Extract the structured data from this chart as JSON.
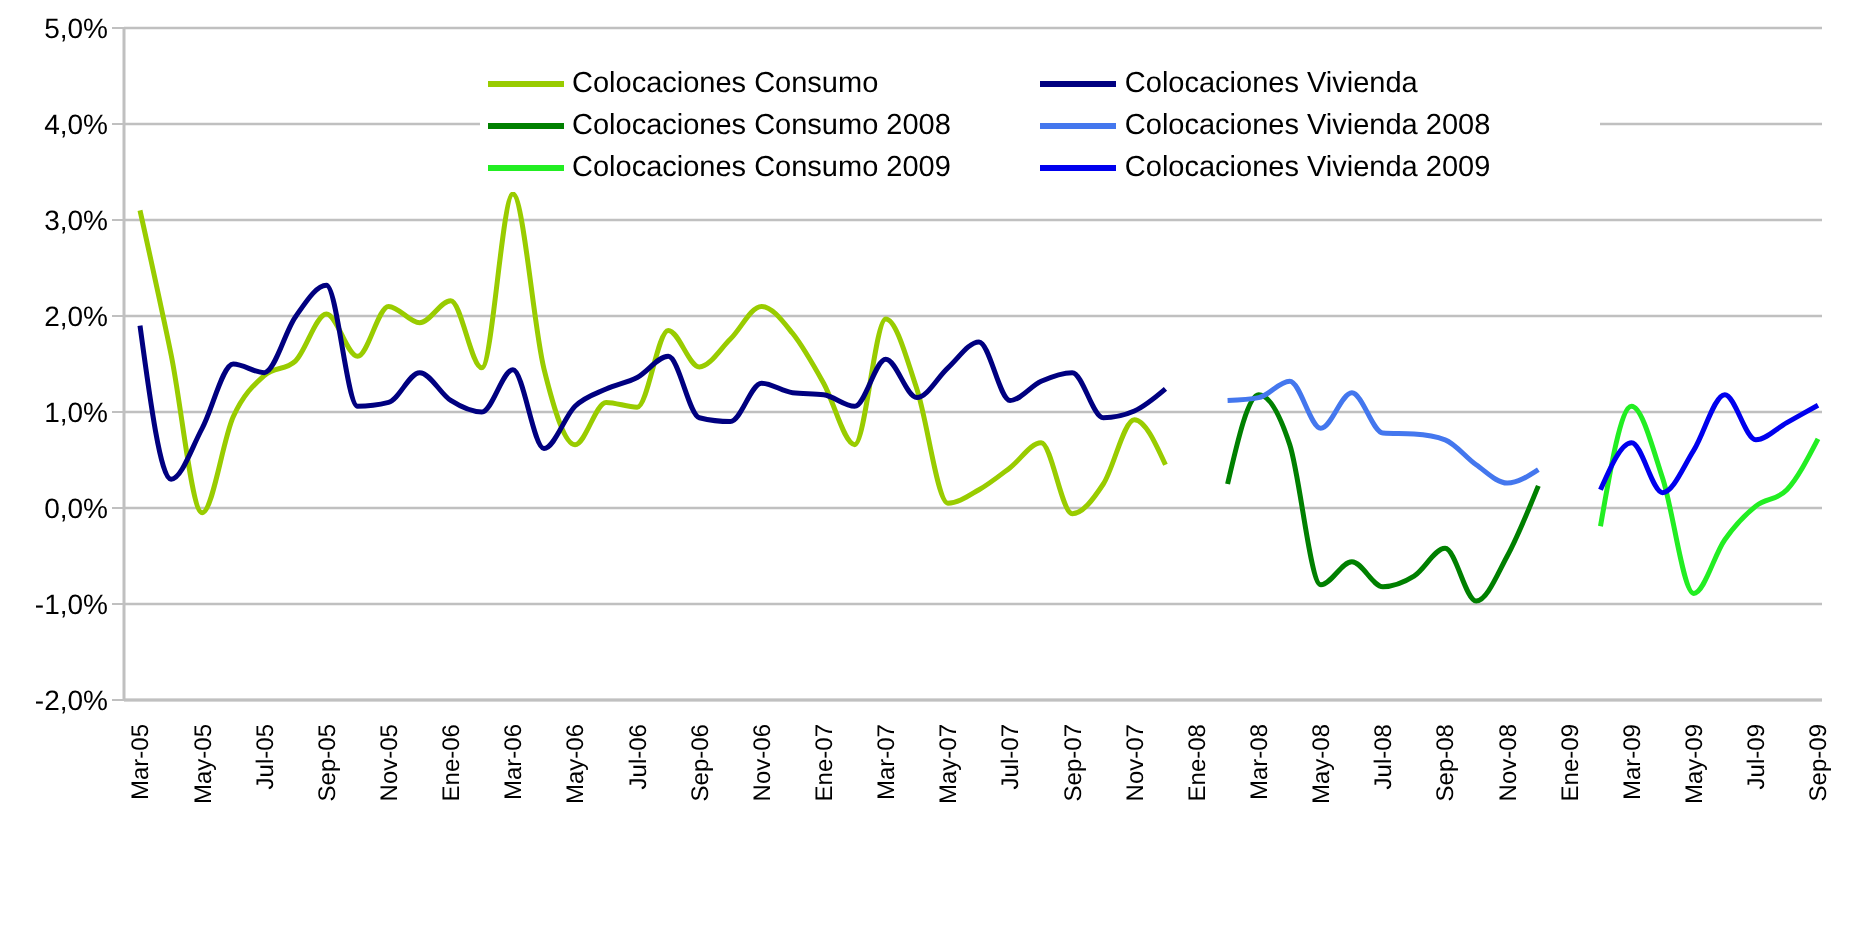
{
  "chart_data": {
    "type": "line",
    "categories": [
      "Mar-05",
      null,
      "May-05",
      null,
      "Jul-05",
      null,
      "Sep-05",
      null,
      "Nov-05",
      null,
      "Ene-06",
      null,
      "Mar-06",
      null,
      "May-06",
      null,
      "Jul-06",
      null,
      "Sep-06",
      null,
      "Nov-06",
      null,
      "Ene-07",
      null,
      "Mar-07",
      null,
      "May-07",
      null,
      "Jul-07",
      null,
      "Sep-07",
      null,
      "Nov-07",
      null,
      "Ene-08",
      null,
      "Mar-08",
      null,
      "May-08",
      null,
      "Jul-08",
      null,
      "Sep-08",
      null,
      "Nov-08",
      null,
      "Ene-09",
      null,
      "Mar-09",
      null,
      "May-09",
      null,
      "Jul-09",
      null,
      "Sep-09"
    ],
    "series": [
      {
        "name": "Colocaciones Consumo",
        "color": "#99cc00",
        "values": [
          3.1,
          1.6,
          -0.05,
          0.95,
          1.38,
          1.53,
          2.02,
          1.58,
          2.1,
          1.93,
          2.16,
          1.46,
          3.27,
          1.45,
          0.66,
          1.1,
          1.05,
          1.85,
          1.47,
          1.76,
          2.1,
          1.82,
          1.3,
          0.66,
          1.97,
          1.24,
          0.05,
          0.19,
          0.42,
          0.68,
          -0.06,
          0.25,
          0.92,
          0.45,
          null,
          null,
          null,
          null,
          null,
          null,
          null,
          null,
          null,
          null,
          null,
          null,
          null,
          null,
          null,
          null,
          null,
          null,
          null,
          null,
          null
        ]
      },
      {
        "name": "Colocaciones Consumo 2008",
        "color": "#008000",
        "values": [
          null,
          null,
          null,
          null,
          null,
          null,
          null,
          null,
          null,
          null,
          null,
          null,
          null,
          null,
          null,
          null,
          null,
          null,
          null,
          null,
          null,
          null,
          null,
          null,
          null,
          null,
          null,
          null,
          null,
          null,
          null,
          null,
          null,
          null,
          null,
          0.25,
          1.18,
          0.66,
          -0.8,
          -0.56,
          -0.82,
          -0.71,
          -0.42,
          -0.97,
          -0.5,
          0.23,
          null,
          null,
          null,
          null,
          null,
          null,
          null,
          null,
          null
        ]
      },
      {
        "name": "Colocaciones Consumo 2009",
        "color": "#22ee22",
        "values": [
          null,
          null,
          null,
          null,
          null,
          null,
          null,
          null,
          null,
          null,
          null,
          null,
          null,
          null,
          null,
          null,
          null,
          null,
          null,
          null,
          null,
          null,
          null,
          null,
          null,
          null,
          null,
          null,
          null,
          null,
          null,
          null,
          null,
          null,
          null,
          null,
          null,
          null,
          null,
          null,
          null,
          null,
          null,
          null,
          null,
          null,
          null,
          -0.19,
          1.06,
          0.31,
          -0.89,
          -0.33,
          0.02,
          0.19,
          0.72
        ]
      },
      {
        "name": "Colocaciones Vivienda",
        "color": "#000080",
        "values": [
          1.9,
          0.3,
          0.83,
          1.5,
          1.41,
          1.99,
          2.32,
          1.06,
          1.1,
          1.41,
          1.12,
          1.0,
          1.44,
          0.62,
          1.06,
          1.24,
          1.36,
          1.58,
          0.94,
          0.9,
          1.3,
          1.2,
          1.18,
          1.06,
          1.55,
          1.15,
          1.46,
          1.73,
          1.12,
          1.32,
          1.41,
          0.94,
          1.01,
          1.24,
          null,
          null,
          null,
          null,
          null,
          null,
          null,
          null,
          null,
          null,
          null,
          null,
          null,
          null,
          null,
          null,
          null,
          null,
          null,
          null,
          null
        ]
      },
      {
        "name": "Colocaciones Vivienda 2008",
        "color": "#4477ee",
        "values": [
          null,
          null,
          null,
          null,
          null,
          null,
          null,
          null,
          null,
          null,
          null,
          null,
          null,
          null,
          null,
          null,
          null,
          null,
          null,
          null,
          null,
          null,
          null,
          null,
          null,
          null,
          null,
          null,
          null,
          null,
          null,
          null,
          null,
          null,
          null,
          1.12,
          1.15,
          1.32,
          0.83,
          1.2,
          0.78,
          0.77,
          0.71,
          0.45,
          0.26,
          0.4,
          null,
          null,
          null,
          null,
          null,
          null,
          null,
          null,
          null
        ]
      },
      {
        "name": "Colocaciones Vivienda 2009",
        "color": "#0000ee",
        "values": [
          null,
          null,
          null,
          null,
          null,
          null,
          null,
          null,
          null,
          null,
          null,
          null,
          null,
          null,
          null,
          null,
          null,
          null,
          null,
          null,
          null,
          null,
          null,
          null,
          null,
          null,
          null,
          null,
          null,
          null,
          null,
          null,
          null,
          null,
          null,
          null,
          null,
          null,
          null,
          null,
          null,
          null,
          null,
          null,
          null,
          null,
          null,
          0.19,
          0.68,
          0.16,
          0.6,
          1.18,
          0.71,
          0.89,
          1.07
        ]
      }
    ],
    "ylim": [
      -2,
      5
    ],
    "yticks": [
      {
        "value": -2,
        "label": "-2,0%"
      },
      {
        "value": -1,
        "label": "-1,0%"
      },
      {
        "value": 0,
        "label": "0,0%"
      },
      {
        "value": 1,
        "label": "1,0%"
      },
      {
        "value": 2,
        "label": "2,0%"
      },
      {
        "value": 3,
        "label": "3,0%"
      },
      {
        "value": 4,
        "label": "4,0%"
      },
      {
        "value": 5,
        "label": "5,0%"
      }
    ],
    "grid": "y",
    "legend": "top",
    "marker": "none",
    "line_style": "solid"
  }
}
